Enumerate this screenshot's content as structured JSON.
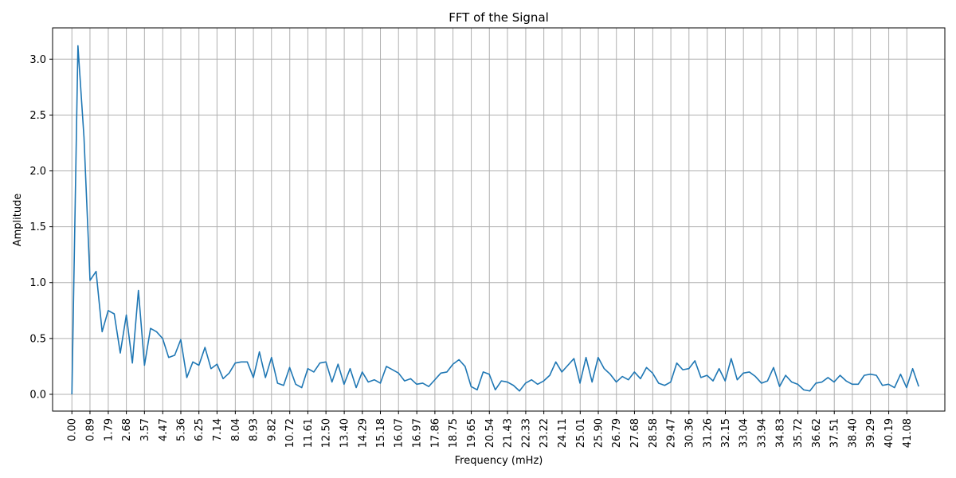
{
  "chart_data": {
    "type": "line",
    "title": "FFT of the Signal",
    "xlabel": "Frequency (mHz)",
    "ylabel": "Amplitude",
    "xlim": [
      -0.95,
      42.95
    ],
    "ylim": [
      -0.15,
      3.28
    ],
    "grid": true,
    "x_ticks": [
      0.0,
      0.89,
      1.79,
      2.68,
      3.57,
      4.47,
      5.36,
      6.25,
      7.14,
      8.04,
      8.93,
      9.82,
      10.72,
      11.61,
      12.5,
      13.4,
      14.29,
      15.18,
      16.07,
      16.97,
      17.86,
      18.75,
      19.65,
      20.54,
      21.43,
      22.33,
      23.22,
      24.11,
      25.01,
      25.9,
      26.79,
      27.68,
      28.58,
      29.47,
      30.36,
      31.26,
      32.15,
      33.04,
      33.94,
      34.83,
      35.72,
      36.62,
      37.51,
      38.4,
      39.29,
      40.19,
      41.08
    ],
    "x_tick_labels": [
      "0.00",
      "0.89",
      "1.79",
      "2.68",
      "3.57",
      "4.47",
      "5.36",
      "6.25",
      "7.14",
      "8.04",
      "8.93",
      "9.82",
      "10.72",
      "11.61",
      "12.50",
      "13.40",
      "14.29",
      "15.18",
      "16.07",
      "16.97",
      "17.86",
      "18.75",
      "19.65",
      "20.54",
      "21.43",
      "22.33",
      "23.22",
      "24.11",
      "25.01",
      "25.90",
      "26.79",
      "27.68",
      "28.58",
      "29.47",
      "30.36",
      "31.26",
      "32.15",
      "33.04",
      "33.94",
      "34.83",
      "35.72",
      "36.62",
      "37.51",
      "38.40",
      "39.29",
      "40.19",
      "41.08"
    ],
    "y_ticks": [
      0.0,
      0.5,
      1.0,
      1.5,
      2.0,
      2.5,
      3.0
    ],
    "y_tick_labels": [
      "0.0",
      "0.5",
      "1.0",
      "1.5",
      "2.0",
      "2.5",
      "3.0"
    ],
    "x_step": 0.2976,
    "values": [
      0.0,
      3.12,
      2.3,
      1.02,
      1.1,
      0.56,
      0.75,
      0.72,
      0.37,
      0.71,
      0.28,
      0.93,
      0.26,
      0.59,
      0.56,
      0.5,
      0.33,
      0.35,
      0.49,
      0.15,
      0.29,
      0.26,
      0.42,
      0.23,
      0.27,
      0.14,
      0.19,
      0.28,
      0.29,
      0.29,
      0.15,
      0.38,
      0.15,
      0.33,
      0.1,
      0.08,
      0.24,
      0.09,
      0.06,
      0.23,
      0.2,
      0.28,
      0.29,
      0.11,
      0.27,
      0.09,
      0.23,
      0.06,
      0.2,
      0.11,
      0.13,
      0.1,
      0.25,
      0.22,
      0.19,
      0.12,
      0.14,
      0.09,
      0.1,
      0.07,
      0.13,
      0.19,
      0.2,
      0.27,
      0.31,
      0.25,
      0.07,
      0.04,
      0.2,
      0.18,
      0.04,
      0.12,
      0.11,
      0.08,
      0.03,
      0.1,
      0.13,
      0.09,
      0.12,
      0.17,
      0.29,
      0.2,
      0.26,
      0.32,
      0.1,
      0.33,
      0.11,
      0.33,
      0.23,
      0.18,
      0.11,
      0.16,
      0.13,
      0.2,
      0.14,
      0.24,
      0.19,
      0.1,
      0.08,
      0.11,
      0.28,
      0.22,
      0.23,
      0.3,
      0.15,
      0.17,
      0.12,
      0.23,
      0.12,
      0.32,
      0.13,
      0.19,
      0.2,
      0.16,
      0.1,
      0.12,
      0.24,
      0.07,
      0.17,
      0.11,
      0.09,
      0.04,
      0.03,
      0.1,
      0.11,
      0.15,
      0.11,
      0.17,
      0.12,
      0.09,
      0.09,
      0.17,
      0.18,
      0.17,
      0.08,
      0.09,
      0.06,
      0.18,
      0.06,
      0.23,
      0.07
    ]
  }
}
